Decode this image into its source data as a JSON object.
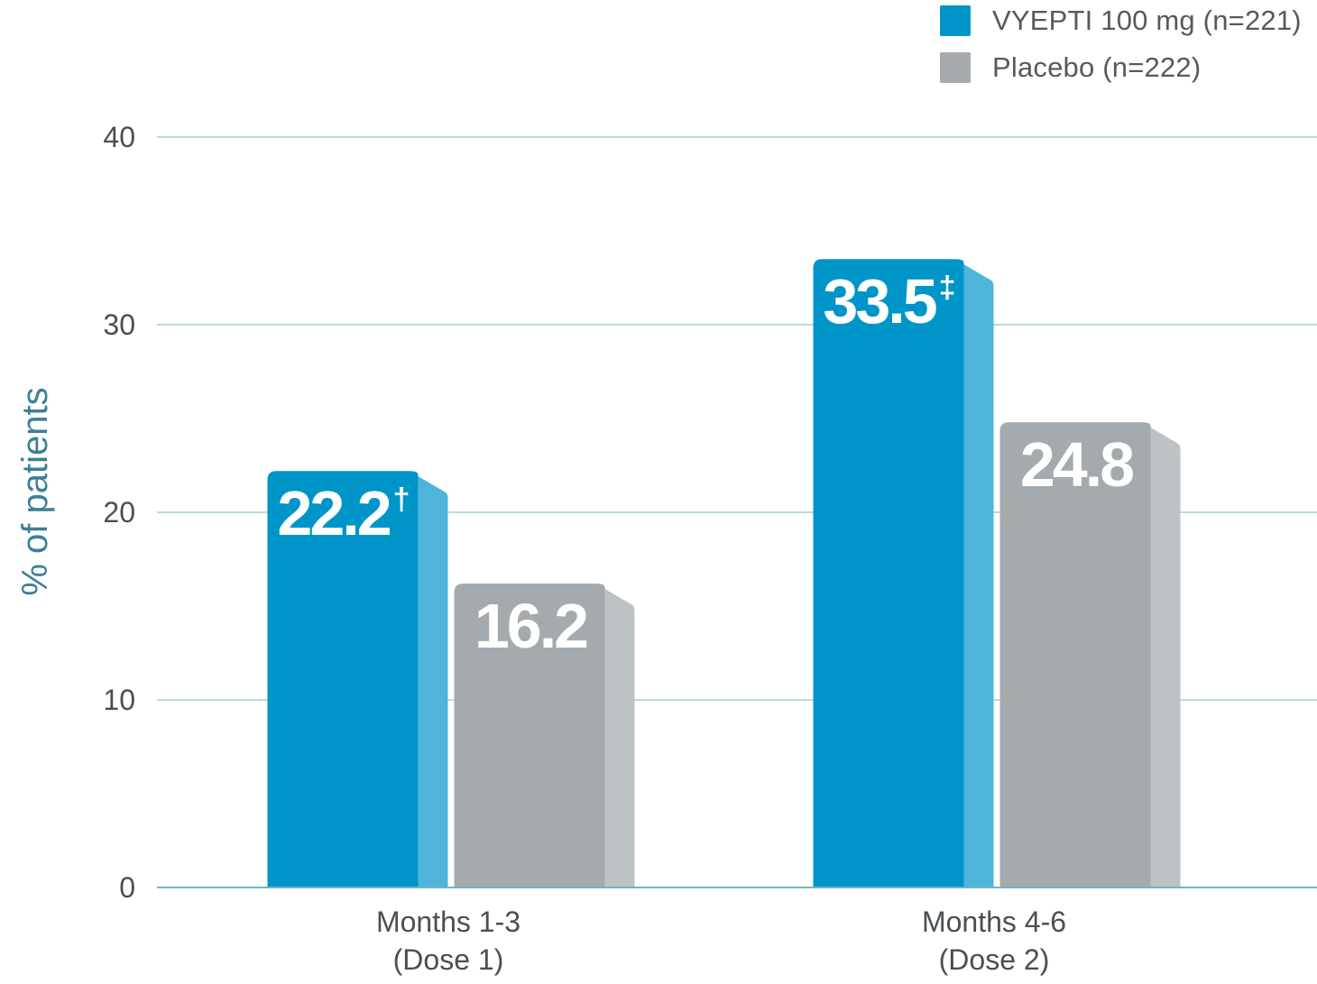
{
  "colors": {
    "vyepti_front": "#0095c8",
    "vyepti_side": "#4fb4da",
    "placebo_front": "#a4aaad",
    "placebo_side": "#bdc2c4",
    "gridline": "#8fc5cc",
    "axis_line": "#6fb7c0",
    "y_axis_title": "#3d7f97",
    "tick_text": "#4a4f53",
    "value_text": "#ffffff"
  },
  "legend": {
    "items": [
      {
        "label": "VYEPTI 100 mg (n=221)",
        "color": "#0095c8"
      },
      {
        "label": "Placebo (n=222)",
        "color": "#a4aaad"
      }
    ]
  },
  "chart_data": {
    "type": "bar",
    "title": "",
    "xlabel": "",
    "ylabel": "% of patients",
    "ylim": [
      0,
      40
    ],
    "yticks": [
      "0",
      "10",
      "20",
      "30",
      "40"
    ],
    "grid": true,
    "legend_position": "top-right",
    "categories": [
      [
        "Months 1-3",
        "(Dose 1)"
      ],
      [
        "Months 4-6",
        "(Dose 2)"
      ]
    ],
    "series": [
      {
        "name": "VYEPTI 100 mg (n=221)",
        "values": [
          22.2,
          33.5
        ],
        "labels": [
          "22.2",
          "33.5"
        ],
        "label_marks": [
          "†",
          "‡"
        ]
      },
      {
        "name": "Placebo (n=222)",
        "values": [
          16.2,
          24.8
        ],
        "labels": [
          "16.2",
          "24.8"
        ],
        "label_marks": [
          "",
          ""
        ]
      }
    ]
  }
}
